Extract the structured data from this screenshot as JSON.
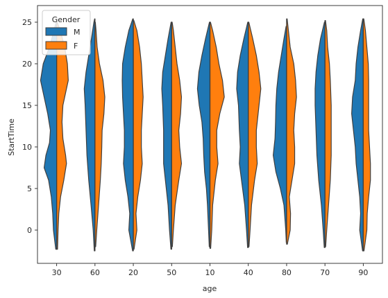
{
  "chart_data": {
    "type": "violin",
    "split": true,
    "xlabel": "age",
    "ylabel": "StartTime",
    "categories": [
      "30",
      "60",
      "20",
      "50",
      "10",
      "40",
      "80",
      "70",
      "90"
    ],
    "ylim": [
      -4,
      27
    ],
    "yticks": [
      0,
      5,
      10,
      15,
      20,
      25
    ],
    "legend": {
      "title": "Gender",
      "position": "top-left",
      "entries": [
        "M",
        "F"
      ]
    },
    "series": [
      {
        "name": "M",
        "color": "#1f77b4"
      },
      {
        "name": "F",
        "color": "#ff7f0e"
      }
    ],
    "distributions": {
      "30": {
        "M": {
          "min": -2.3,
          "max": 25.0,
          "density": [
            [
              -2.3,
              0.05
            ],
            [
              0,
              0.18
            ],
            [
              2,
              0.22
            ],
            [
              4,
              0.3
            ],
            [
              6,
              0.45
            ],
            [
              7.5,
              0.7
            ],
            [
              9,
              0.6
            ],
            [
              10.5,
              0.4
            ],
            [
              12,
              0.35
            ],
            [
              14,
              0.5
            ],
            [
              16,
              0.7
            ],
            [
              18,
              0.9
            ],
            [
              20,
              0.75
            ],
            [
              22,
              0.4
            ],
            [
              24,
              0.15
            ],
            [
              25,
              0.03
            ]
          ]
        },
        "F": {
          "min": -2.3,
          "max": 25.0,
          "density": [
            [
              -2.3,
              0.05
            ],
            [
              0,
              0.08
            ],
            [
              2,
              0.12
            ],
            [
              4,
              0.22
            ],
            [
              6,
              0.4
            ],
            [
              8,
              0.55
            ],
            [
              9,
              0.5
            ],
            [
              11,
              0.35
            ],
            [
              13,
              0.3
            ],
            [
              15,
              0.35
            ],
            [
              17,
              0.55
            ],
            [
              18,
              0.65
            ],
            [
              20,
              0.6
            ],
            [
              22,
              0.45
            ],
            [
              24,
              0.2
            ],
            [
              25,
              0.03
            ]
          ]
        }
      },
      "60": {
        "M": {
          "min": -2.5,
          "max": 25.4,
          "density": [
            [
              -2.5,
              0.04
            ],
            [
              0,
              0.1
            ],
            [
              3,
              0.22
            ],
            [
              6,
              0.35
            ],
            [
              9,
              0.45
            ],
            [
              12,
              0.5
            ],
            [
              15,
              0.55
            ],
            [
              17,
              0.6
            ],
            [
              19,
              0.5
            ],
            [
              21,
              0.35
            ],
            [
              23,
              0.2
            ],
            [
              25,
              0.06
            ],
            [
              25.4,
              0.02
            ]
          ]
        },
        "F": {
          "min": -2.0,
          "max": 25.0,
          "density": [
            [
              -2,
              0.04
            ],
            [
              0,
              0.1
            ],
            [
              3,
              0.2
            ],
            [
              6,
              0.3
            ],
            [
              8,
              0.35
            ],
            [
              10,
              0.38
            ],
            [
              12,
              0.4
            ],
            [
              14,
              0.5
            ],
            [
              16,
              0.55
            ],
            [
              18,
              0.45
            ],
            [
              20,
              0.25
            ],
            [
              22,
              0.12
            ],
            [
              24,
              0.06
            ],
            [
              25,
              0.02
            ]
          ]
        }
      },
      "20": {
        "M": {
          "min": -2.5,
          "max": 25.4,
          "density": [
            [
              -2.5,
              0.04
            ],
            [
              0,
              0.25
            ],
            [
              2,
              0.2
            ],
            [
              4,
              0.3
            ],
            [
              6,
              0.45
            ],
            [
              8,
              0.55
            ],
            [
              10,
              0.5
            ],
            [
              12,
              0.5
            ],
            [
              14,
              0.55
            ],
            [
              16,
              0.6
            ],
            [
              18,
              0.62
            ],
            [
              20,
              0.6
            ],
            [
              22,
              0.45
            ],
            [
              24,
              0.25
            ],
            [
              25.4,
              0.03
            ]
          ]
        },
        "F": {
          "min": -2.3,
          "max": 25.2,
          "density": [
            [
              -2.3,
              0.04
            ],
            [
              0,
              0.2
            ],
            [
              2,
              0.15
            ],
            [
              4,
              0.25
            ],
            [
              6,
              0.4
            ],
            [
              8,
              0.5
            ],
            [
              10,
              0.45
            ],
            [
              12,
              0.45
            ],
            [
              14,
              0.5
            ],
            [
              16,
              0.55
            ],
            [
              18,
              0.5
            ],
            [
              20,
              0.45
            ],
            [
              22,
              0.35
            ],
            [
              24,
              0.2
            ],
            [
              25.2,
              0.03
            ]
          ]
        }
      },
      "50": {
        "M": {
          "min": -2.3,
          "max": 25.0,
          "density": [
            [
              -2.3,
              0.04
            ],
            [
              0,
              0.12
            ],
            [
              3,
              0.2
            ],
            [
              6,
              0.35
            ],
            [
              8,
              0.45
            ],
            [
              10,
              0.45
            ],
            [
              12,
              0.45
            ],
            [
              15,
              0.5
            ],
            [
              17,
              0.55
            ],
            [
              19,
              0.5
            ],
            [
              21,
              0.35
            ],
            [
              23,
              0.2
            ],
            [
              25,
              0.03
            ]
          ]
        },
        "F": {
          "min": -2.0,
          "max": 25.0,
          "density": [
            [
              -2,
              0.04
            ],
            [
              0,
              0.1
            ],
            [
              3,
              0.2
            ],
            [
              6,
              0.4
            ],
            [
              8,
              0.55
            ],
            [
              10,
              0.45
            ],
            [
              12,
              0.4
            ],
            [
              14,
              0.5
            ],
            [
              16,
              0.55
            ],
            [
              18,
              0.45
            ],
            [
              20,
              0.3
            ],
            [
              22,
              0.2
            ],
            [
              24,
              0.1
            ],
            [
              25,
              0.03
            ]
          ]
        }
      },
      "10": {
        "M": {
          "min": -2.0,
          "max": 25.0,
          "density": [
            [
              -2,
              0.04
            ],
            [
              0,
              0.08
            ],
            [
              3,
              0.14
            ],
            [
              5,
              0.2
            ],
            [
              7,
              0.3
            ],
            [
              9,
              0.35
            ],
            [
              11,
              0.38
            ],
            [
              13,
              0.45
            ],
            [
              15,
              0.6
            ],
            [
              17,
              0.7
            ],
            [
              19,
              0.62
            ],
            [
              21,
              0.45
            ],
            [
              23,
              0.25
            ],
            [
              25,
              0.03
            ]
          ]
        },
        "F": {
          "min": -2.2,
          "max": 25.0,
          "density": [
            [
              -2.2,
              0.04
            ],
            [
              0,
              0.1
            ],
            [
              3,
              0.15
            ],
            [
              6,
              0.3
            ],
            [
              8,
              0.45
            ],
            [
              10,
              0.38
            ],
            [
              12,
              0.38
            ],
            [
              14,
              0.55
            ],
            [
              16,
              0.8
            ],
            [
              18,
              0.7
            ],
            [
              20,
              0.5
            ],
            [
              22,
              0.35
            ],
            [
              24,
              0.15
            ],
            [
              25,
              0.03
            ]
          ]
        }
      },
      "40": {
        "M": {
          "min": -2.1,
          "max": 25.0,
          "density": [
            [
              -2.1,
              0.04
            ],
            [
              0,
              0.1
            ],
            [
              3,
              0.2
            ],
            [
              6,
              0.38
            ],
            [
              8,
              0.5
            ],
            [
              10,
              0.45
            ],
            [
              12,
              0.5
            ],
            [
              15,
              0.55
            ],
            [
              17,
              0.65
            ],
            [
              19,
              0.6
            ],
            [
              21,
              0.45
            ],
            [
              23,
              0.25
            ],
            [
              25,
              0.03
            ]
          ]
        },
        "F": {
          "min": -2.0,
          "max": 25.0,
          "density": [
            [
              -2,
              0.04
            ],
            [
              0,
              0.1
            ],
            [
              3,
              0.18
            ],
            [
              6,
              0.35
            ],
            [
              8,
              0.5
            ],
            [
              10,
              0.45
            ],
            [
              12,
              0.45
            ],
            [
              15,
              0.6
            ],
            [
              17,
              0.7
            ],
            [
              19,
              0.6
            ],
            [
              21,
              0.45
            ],
            [
              23,
              0.25
            ],
            [
              25,
              0.03
            ]
          ]
        }
      },
      "80": {
        "M": {
          "min": -1.5,
          "max": 24.5,
          "density": [
            [
              -1.5,
              0.02
            ],
            [
              0,
              0.05
            ],
            [
              3,
              0.15
            ],
            [
              5,
              0.35
            ],
            [
              7,
              0.6
            ],
            [
              9,
              0.75
            ],
            [
              11,
              0.65
            ],
            [
              13,
              0.62
            ],
            [
              15,
              0.6
            ],
            [
              17,
              0.55
            ],
            [
              19,
              0.45
            ],
            [
              21,
              0.3
            ],
            [
              23,
              0.15
            ],
            [
              24.5,
              0.03
            ]
          ]
        },
        "F": {
          "min": -1.7,
          "max": 25.4,
          "density": [
            [
              -1.7,
              0.04
            ],
            [
              0,
              0.2
            ],
            [
              2,
              0.22
            ],
            [
              4,
              0.15
            ],
            [
              6,
              0.3
            ],
            [
              8,
              0.45
            ],
            [
              10,
              0.45
            ],
            [
              12,
              0.4
            ],
            [
              14,
              0.45
            ],
            [
              16,
              0.55
            ],
            [
              18,
              0.5
            ],
            [
              20,
              0.4
            ],
            [
              22,
              0.2
            ],
            [
              24,
              0.1
            ],
            [
              25.4,
              0.03
            ]
          ]
        }
      },
      "70": {
        "M": {
          "min": -2.1,
          "max": 25.0,
          "density": [
            [
              -2.1,
              0.04
            ],
            [
              0,
              0.1
            ],
            [
              3,
              0.2
            ],
            [
              6,
              0.35
            ],
            [
              9,
              0.45
            ],
            [
              12,
              0.5
            ],
            [
              15,
              0.55
            ],
            [
              17,
              0.55
            ],
            [
              19,
              0.5
            ],
            [
              21,
              0.4
            ],
            [
              23,
              0.25
            ],
            [
              25,
              0.03
            ]
          ]
        },
        "F": {
          "min": -2.0,
          "max": 25.2,
          "density": [
            [
              -2,
              0.04
            ],
            [
              0,
              0.1
            ],
            [
              3,
              0.2
            ],
            [
              6,
              0.3
            ],
            [
              9,
              0.35
            ],
            [
              12,
              0.35
            ],
            [
              15,
              0.35
            ],
            [
              18,
              0.3
            ],
            [
              20,
              0.25
            ],
            [
              22,
              0.15
            ],
            [
              24,
              0.1
            ],
            [
              25.2,
              0.03
            ]
          ]
        }
      },
      "90": {
        "M": {
          "min": -2.5,
          "max": 25.4,
          "density": [
            [
              -2.5,
              0.04
            ],
            [
              0,
              0.2
            ],
            [
              2,
              0.15
            ],
            [
              4,
              0.2
            ],
            [
              6,
              0.3
            ],
            [
              8,
              0.4
            ],
            [
              10,
              0.45
            ],
            [
              12,
              0.55
            ],
            [
              14,
              0.65
            ],
            [
              16,
              0.6
            ],
            [
              18,
              0.45
            ],
            [
              20,
              0.4
            ],
            [
              22,
              0.3
            ],
            [
              24,
              0.15
            ],
            [
              25.4,
              0.03
            ]
          ]
        },
        "F": {
          "min": -2.5,
          "max": 25.4,
          "density": [
            [
              -2.5,
              0.04
            ],
            [
              0,
              0.2
            ],
            [
              2,
              0.22
            ],
            [
              4,
              0.3
            ],
            [
              6,
              0.4
            ],
            [
              8,
              0.4
            ],
            [
              10,
              0.35
            ],
            [
              12,
              0.3
            ],
            [
              14,
              0.3
            ],
            [
              16,
              0.3
            ],
            [
              18,
              0.3
            ],
            [
              20,
              0.28
            ],
            [
              22,
              0.2
            ],
            [
              24,
              0.12
            ],
            [
              25.4,
              0.03
            ]
          ]
        }
      }
    }
  }
}
